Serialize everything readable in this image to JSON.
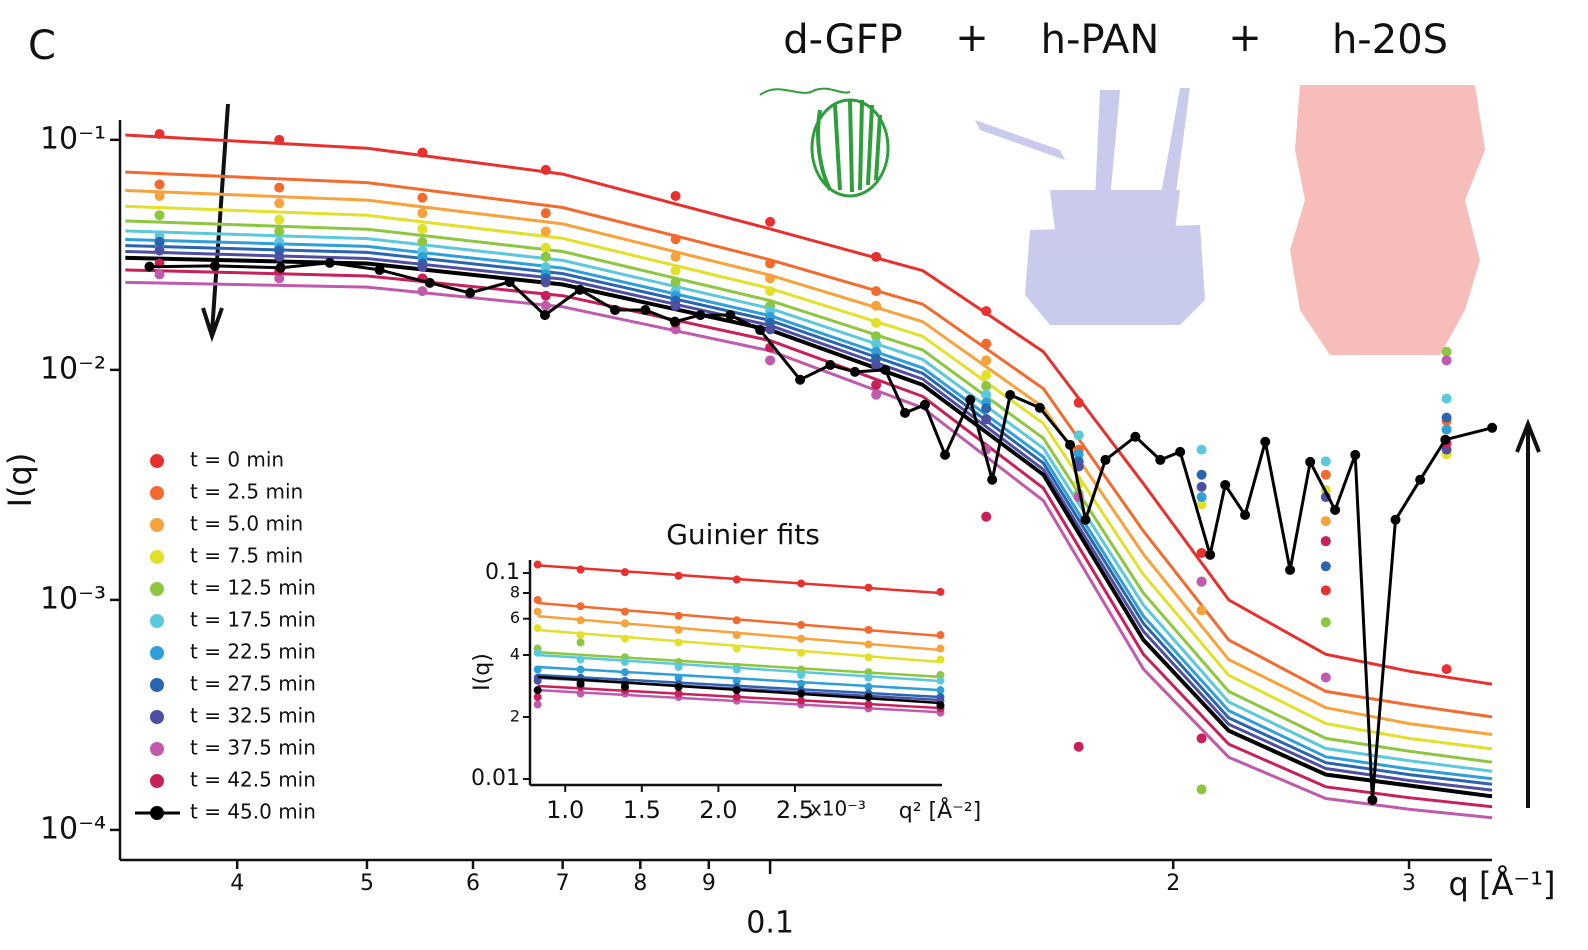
{
  "chart_data": {
    "type": "scatter",
    "panel_label": "C",
    "ylabel": "I(q)",
    "xlabel": "q [Å⁻¹]",
    "log_x": true,
    "log_y": true,
    "xlim": [
      0.0327,
      0.346
    ],
    "ylim": [
      7.4e-05,
      0.149
    ],
    "xticks": [
      {
        "value": 0.04,
        "label": "4"
      },
      {
        "value": 0.05,
        "label": "5"
      },
      {
        "value": 0.06,
        "label": "6"
      },
      {
        "value": 0.07,
        "label": "7"
      },
      {
        "value": 0.08,
        "label": "8"
      },
      {
        "value": 0.09,
        "label": "9"
      },
      0.1,
      {
        "value": 0.2,
        "label": "2"
      },
      {
        "value": 0.3,
        "label": "3"
      }
    ],
    "yticks": [
      {
        "value": 0.1,
        "label": "10⁻¹"
      },
      {
        "value": 0.01,
        "label": "10⁻²"
      },
      {
        "value": 0.001,
        "label": "10⁻³"
      },
      {
        "value": 0.0001,
        "label": "10⁻⁴"
      }
    ],
    "annotations": [
      "d-GFP",
      "+",
      "h-PAN",
      "+",
      "h-20S"
    ],
    "x": [
      0.035,
      0.043,
      0.055,
      0.068,
      0.085,
      0.1,
      0.12,
      0.145,
      0.17,
      0.21,
      0.26,
      0.32
    ],
    "fit_x": [
      0.033,
      0.05,
      0.07,
      0.1,
      0.13,
      0.16,
      0.19,
      0.22,
      0.26,
      0.3,
      0.346
    ],
    "series": [
      {
        "name": "t = 0 min",
        "color": "#e8312f",
        "values": [
          0.106,
          0.1,
          0.088,
          0.074,
          0.057,
          0.044,
          0.031,
          0.018,
          0.0072,
          0.0016,
          0.0011,
          0.0005
        ],
        "fit": [
          0.105,
          0.092,
          0.071,
          0.041,
          0.027,
          0.012,
          0.0032,
          0.001,
          0.00058,
          0.00049,
          0.00043
        ]
      },
      {
        "name": "t = 2.5 min",
        "color": "#f26a2e",
        "values": [
          0.064,
          0.062,
          0.056,
          0.048,
          0.037,
          0.029,
          0.022,
          0.013,
          0.0045,
          0.0012,
          0.0035,
          0.006
        ],
        "fit": [
          0.0724,
          0.0652,
          0.0508,
          0.0301,
          0.0193,
          0.00828,
          0.00199,
          0.00067,
          0.0004,
          0.00035,
          0.00031
        ]
      },
      {
        "name": "t = 5.0 min",
        "color": "#f7a23a",
        "values": [
          0.057,
          0.053,
          0.048,
          0.04,
          0.031,
          0.025,
          0.019,
          0.011,
          0.0038,
          0.0009,
          0.0022,
          0.0075
        ],
        "fit": [
          0.0603,
          0.0547,
          0.0431,
          0.0258,
          0.0162,
          0.00687,
          0.00158,
          0.00055,
          0.00034,
          0.00029,
          0.00026
        ]
      },
      {
        "name": "t = 7.5 min",
        "color": "#e3e02a",
        "values": [
          0.047,
          0.045,
          0.041,
          0.034,
          0.027,
          0.022,
          0.016,
          0.0095,
          0.0032,
          0.0026,
          0.003,
          0.0043
        ],
        "fit": [
          0.0514,
          0.047,
          0.0373,
          0.0226,
          0.014,
          0.00585,
          0.00129,
          0.00047,
          0.00029,
          0.00025,
          0.000225
        ]
      },
      {
        "name": "t = 12.5 min",
        "color": "#8dc63f",
        "values": [
          0.047,
          0.04,
          0.036,
          0.031,
          0.024,
          0.019,
          0.014,
          0.0085,
          0.0029,
          0.00015,
          0.0008,
          0.012
        ],
        "fit": [
          0.0444,
          0.0409,
          0.0327,
          0.02,
          0.0122,
          0.00504,
          0.00107,
          0.0004,
          0.00025,
          0.00022,
          0.000197
        ]
      },
      {
        "name": "t = 17.5 min",
        "color": "#5bc8dc",
        "values": [
          0.038,
          0.036,
          0.033,
          0.028,
          0.022,
          0.018,
          0.013,
          0.0078,
          0.0052,
          0.0045,
          0.004,
          0.0075
        ],
        "fit": [
          0.0402,
          0.0372,
          0.0299,
          0.0185,
          0.0111,
          0.00456,
          0.00095,
          0.00036,
          0.000226,
          0.0002,
          0.00018
        ]
      },
      {
        "name": "t = 22.5 min",
        "color": "#2e9fd8",
        "values": [
          0.035,
          0.034,
          0.031,
          0.026,
          0.021,
          0.017,
          0.012,
          0.0072,
          0.0043,
          0.0028,
          0.0018,
          0.0055
        ],
        "fit": [
          0.0369,
          0.0344,
          0.0277,
          0.0172,
          0.0102,
          0.00418,
          0.00085,
          0.00033,
          0.000208,
          0.000184,
          0.000167
        ]
      },
      {
        "name": "t = 27.5 min",
        "color": "#2a65b0",
        "values": [
          0.036,
          0.033,
          0.029,
          0.025,
          0.02,
          0.016,
          0.0112,
          0.0068,
          0.004,
          0.0035,
          0.0014,
          0.0062
        ],
        "fit": [
          0.0347,
          0.0324,
          0.0262,
          0.0164,
          0.00966,
          0.00393,
          0.00079,
          0.000307,
          0.000196,
          0.000174,
          0.000158
        ]
      },
      {
        "name": "t = 32.5 min",
        "color": "#4e4fa3",
        "values": [
          0.033,
          0.031,
          0.028,
          0.024,
          0.019,
          0.015,
          0.0105,
          0.0061,
          0.0038,
          0.0031,
          0.0028,
          0.0045
        ],
        "fit": [
          0.0327,
          0.0305,
          0.0248,
          0.0156,
          0.00912,
          0.00369,
          0.00073,
          0.000288,
          0.000185,
          0.000164,
          0.000149
        ]
      },
      {
        "name": "t = 37.5 min",
        "color": "#c05aad",
        "values": [
          0.026,
          0.025,
          0.022,
          0.019,
          0.015,
          0.011,
          0.0078,
          0.0045,
          0.0028,
          0.0012,
          0.00046,
          0.011
        ],
        "fit": [
          0.024,
          0.0229,
          0.0188,
          0.0121,
          0.00684,
          0.0027,
          0.0005,
          0.000207,
          0.000137,
          0.000123,
          0.000113
        ]
      },
      {
        "name": "t = 42.5 min",
        "color": "#c8205a",
        "values": [
          0.029,
          0.027,
          0.025,
          0.021,
          0.016,
          0.0125,
          0.0086,
          0.0023,
          0.00023,
          0.00025,
          0.0018,
          0.0048
        ],
        "fit": [
          0.0272,
          0.0256,
          0.021,
          0.0134,
          0.00767,
          0.00306,
          0.00058,
          0.000236,
          0.000154,
          0.000138,
          0.000126
        ]
      },
      {
        "name": "t = 45.0 min",
        "color": "#000000",
        "connect": true,
        "x": [
          0.0344,
          0.0385,
          0.0431,
          0.0469,
          0.0511,
          0.0557,
          0.0597,
          0.0639,
          0.0679,
          0.0721,
          0.0766,
          0.0807,
          0.0849,
          0.0887,
          0.0934,
          0.0983,
          0.1053,
          0.1109,
          0.1157,
          0.1219,
          0.1261,
          0.1305,
          0.1351,
          0.1411,
          0.1465,
          0.1511,
          0.159,
          0.1675,
          0.172,
          0.178,
          0.1874,
          0.1956,
          0.2024,
          0.2131,
          0.2187,
          0.2263,
          0.2343,
          0.2445,
          0.2531,
          0.2642,
          0.2735,
          0.2817,
          0.2931,
          0.3058,
          0.3193,
          0.3461
        ],
        "values": [
          0.0281,
          0.0283,
          0.0278,
          0.0292,
          0.0272,
          0.0239,
          0.0216,
          0.0241,
          0.0173,
          0.0223,
          0.0182,
          0.0182,
          0.0162,
          0.0173,
          0.0173,
          0.0149,
          0.00906,
          0.0105,
          0.0098,
          0.01,
          0.0065,
          0.00705,
          0.00427,
          0.00741,
          0.00333,
          0.00778,
          0.00684,
          0.00472,
          0.00223,
          0.00406,
          0.00512,
          0.00406,
          0.0044,
          0.00157,
          0.00316,
          0.00234,
          0.00487,
          0.00135,
          0.00398,
          0.00246,
          0.00427,
          0.000135,
          0.00223,
          0.00333,
          0.00497,
          0.0056
        ],
        "fit": [
          0.0307,
          0.029,
          0.0235,
          0.0149,
          0.0086,
          0.0035,
          0.00067,
          0.00027,
          0.000174,
          0.000156,
          0.00014
        ]
      }
    ],
    "inset": {
      "title": "Guinier fits",
      "ylabel": "I(q)",
      "xlabel": "q² [Å⁻²]",
      "x_multiplier": "x10⁻³",
      "log_y": true,
      "xlim": [
        0.77,
        3.46
      ],
      "ylim": [
        0.00935,
        0.1157
      ],
      "xticks": [
        {
          "value": 1,
          "label": "1.0"
        },
        1.5,
        {
          "value": 2,
          "label": "2.0"
        },
        2.5
      ],
      "yticks": [
        0.1,
        {
          "value": 0.08,
          "label": "8"
        },
        {
          "value": 0.06,
          "label": "6"
        },
        {
          "value": 0.04,
          "label": "4"
        },
        {
          "value": 0.02,
          "label": "2"
        },
        0.01
      ],
      "x": [
        0.82,
        1.1,
        1.39,
        1.74,
        2.12,
        2.54,
        2.98,
        3.45
      ],
      "fit_x": [
        0.82,
        3.45
      ],
      "series": [
        {
          "values": [
            0.11,
            0.104,
            0.101,
            0.097,
            0.093,
            0.089,
            0.085,
            0.081
          ],
          "fit": [
            0.109,
            0.08
          ]
        },
        {
          "values": [
            0.074,
            0.069,
            0.065,
            0.062,
            0.059,
            0.056,
            0.053,
            0.05
          ],
          "fit": [
            0.0715,
            0.0495
          ]
        },
        {
          "values": [
            0.065,
            0.059,
            0.057,
            0.053,
            0.05,
            0.048,
            0.045,
            0.043
          ],
          "fit": [
            0.0618,
            0.0423
          ]
        },
        {
          "values": [
            0.054,
            0.05,
            0.048,
            0.046,
            0.043,
            0.041,
            0.039,
            0.038
          ],
          "fit": [
            0.0529,
            0.037
          ]
        },
        {
          "values": [
            0.043,
            0.046,
            0.039,
            0.037,
            0.035,
            0.034,
            0.033,
            0.032
          ],
          "fit": [
            0.0413,
            0.0313
          ]
        },
        {
          "values": [
            0.041,
            0.038,
            0.037,
            0.035,
            0.034,
            0.032,
            0.031,
            0.03
          ],
          "fit": [
            0.04,
            0.0299
          ]
        },
        {
          "values": [
            0.034,
            0.034,
            0.033,
            0.031,
            0.03,
            0.029,
            0.028,
            0.027
          ],
          "fit": [
            0.035,
            0.027
          ]
        },
        {
          "values": [
            0.031,
            0.031,
            0.03,
            0.029,
            0.028,
            0.027,
            0.026,
            0.025
          ],
          "fit": [
            0.032,
            0.025
          ]
        },
        {
          "values": [
            0.03,
            0.03,
            0.029,
            0.028,
            0.027,
            0.026,
            0.025,
            0.024
          ],
          "fit": [
            0.031,
            0.0242
          ]
        },
        {
          "values": [
            0.023,
            0.026,
            0.026,
            0.025,
            0.024,
            0.023,
            0.022,
            0.021
          ],
          "fit": [
            0.027,
            0.0211
          ]
        },
        {
          "values": [
            0.025,
            0.028,
            0.027,
            0.026,
            0.025,
            0.024,
            0.023,
            0.022
          ],
          "fit": [
            0.0283,
            0.0221
          ]
        },
        {
          "values": [
            0.027,
            0.029,
            0.028,
            0.028,
            0.027,
            0.026,
            0.025,
            0.0228
          ],
          "fit": [
            0.0313,
            0.0234
          ]
        }
      ]
    }
  }
}
